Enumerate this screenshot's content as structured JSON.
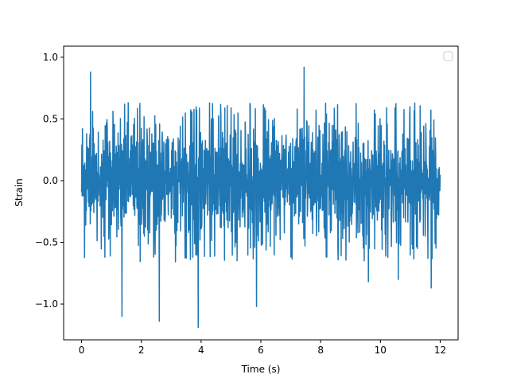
{
  "chart_data": {
    "type": "line",
    "title": "",
    "xlabel": "Time (s)",
    "ylabel": "Strain",
    "xlim": [
      -0.6,
      12.6
    ],
    "ylim": [
      -1.29,
      1.09
    ],
    "xticks": [
      0,
      2,
      4,
      6,
      8,
      10,
      12
    ],
    "yticks": [
      -1.0,
      -0.5,
      0.0,
      0.5,
      1.0
    ],
    "xtick_labels": [
      "0",
      "2",
      "4",
      "6",
      "8",
      "10",
      "12"
    ],
    "ytick_labels": [
      "−1.0",
      "−0.5",
      "0.0",
      "0.5",
      "1.0"
    ],
    "grid": false,
    "legend": {
      "placement": "top-right",
      "entries": []
    },
    "series": [
      {
        "color": "#1f77b4",
        "x_range": [
          0,
          12
        ],
        "sample_count": 1200,
        "envelope_typical": [
          -0.55,
          0.55
        ],
        "extremes": [
          {
            "x": 0.3,
            "y": 0.88
          },
          {
            "x": 1.35,
            "y": -1.1
          },
          {
            "x": 2.6,
            "y": -1.14
          },
          {
            "x": 3.9,
            "y": -1.19
          },
          {
            "x": 5.85,
            "y": -1.02
          },
          {
            "x": 7.45,
            "y": 0.92
          },
          {
            "x": 9.6,
            "y": 0.91
          },
          {
            "x": 10.6,
            "y": 0.89
          },
          {
            "x": 11.7,
            "y": -0.87
          }
        ]
      }
    ]
  }
}
